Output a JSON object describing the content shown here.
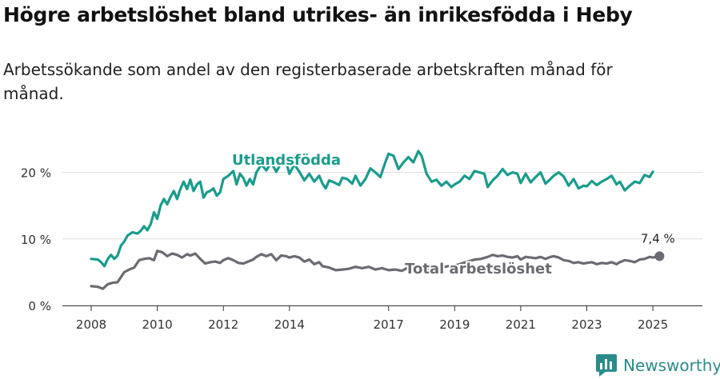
{
  "title": "Högre arbetslöshet bland utrikes- än inrikesfödda i Heby",
  "subtitle": "Arbetssökande som andel av den registerbaserade arbetskraften månad för månad.",
  "brand": {
    "name": "Newsworthy",
    "color": "#2a8c8a",
    "icon": "bar-chart-logo-icon"
  },
  "chart_data": {
    "type": "line",
    "xlabel": "",
    "ylabel": "",
    "ylim": [
      0,
      25
    ],
    "x_ticks": [
      "2008",
      "2010",
      "2012",
      "2014",
      "2017",
      "2019",
      "2021",
      "2023",
      "2025"
    ],
    "y_ticks": [
      "0 %",
      "10 %",
      "20 %"
    ],
    "grid": "horizontal",
    "end_label": "7,4 %",
    "series": [
      {
        "name": "Utlandsfödda",
        "color": "#1a9c8c",
        "points": [
          [
            2008.0,
            7.0
          ],
          [
            2008.2,
            6.9
          ],
          [
            2008.3,
            6.5
          ],
          [
            2008.4,
            5.9
          ],
          [
            2008.5,
            7.0
          ],
          [
            2008.6,
            7.6
          ],
          [
            2008.7,
            7.0
          ],
          [
            2008.8,
            7.5
          ],
          [
            2008.9,
            9.0
          ],
          [
            2009.0,
            9.6
          ],
          [
            2009.1,
            10.5
          ],
          [
            2009.25,
            11.0
          ],
          [
            2009.4,
            10.8
          ],
          [
            2009.5,
            11.2
          ],
          [
            2009.6,
            11.9
          ],
          [
            2009.7,
            11.3
          ],
          [
            2009.8,
            12.2
          ],
          [
            2009.9,
            14.0
          ],
          [
            2010.0,
            13.0
          ],
          [
            2010.1,
            15.0
          ],
          [
            2010.2,
            16.0
          ],
          [
            2010.3,
            15.2
          ],
          [
            2010.4,
            16.3
          ],
          [
            2010.5,
            17.2
          ],
          [
            2010.6,
            16.0
          ],
          [
            2010.7,
            17.5
          ],
          [
            2010.8,
            18.6
          ],
          [
            2010.9,
            17.5
          ],
          [
            2011.0,
            18.9
          ],
          [
            2011.1,
            17.2
          ],
          [
            2011.2,
            18.2
          ],
          [
            2011.3,
            18.6
          ],
          [
            2011.4,
            16.2
          ],
          [
            2011.5,
            17.0
          ],
          [
            2011.6,
            17.2
          ],
          [
            2011.7,
            17.6
          ],
          [
            2011.8,
            16.5
          ],
          [
            2011.9,
            17.0
          ],
          [
            2012.0,
            19.0
          ],
          [
            2012.15,
            19.5
          ],
          [
            2012.3,
            20.2
          ],
          [
            2012.4,
            18.2
          ],
          [
            2012.5,
            19.8
          ],
          [
            2012.6,
            19.2
          ],
          [
            2012.7,
            18.0
          ],
          [
            2012.8,
            19.0
          ],
          [
            2012.9,
            18.2
          ],
          [
            2013.0,
            20.0
          ],
          [
            2013.15,
            21.2
          ],
          [
            2013.3,
            20.3
          ],
          [
            2013.45,
            21.5
          ],
          [
            2013.6,
            20.1
          ],
          [
            2013.75,
            21.4
          ],
          [
            2013.9,
            21.5
          ],
          [
            2014.0,
            19.8
          ],
          [
            2014.15,
            21.2
          ],
          [
            2014.3,
            20.1
          ],
          [
            2014.45,
            18.8
          ],
          [
            2014.6,
            19.8
          ],
          [
            2014.75,
            18.6
          ],
          [
            2014.9,
            19.5
          ],
          [
            2015.0,
            18.3
          ],
          [
            2015.1,
            17.6
          ],
          [
            2015.2,
            18.8
          ],
          [
            2015.35,
            18.5
          ],
          [
            2015.5,
            18.1
          ],
          [
            2015.6,
            19.2
          ],
          [
            2015.75,
            19.0
          ],
          [
            2015.9,
            18.3
          ],
          [
            2016.0,
            19.5
          ],
          [
            2016.15,
            18.0
          ],
          [
            2016.3,
            19.0
          ],
          [
            2016.45,
            20.6
          ],
          [
            2016.6,
            20.0
          ],
          [
            2016.75,
            19.3
          ],
          [
            2016.9,
            21.5
          ],
          [
            2017.0,
            22.8
          ],
          [
            2017.15,
            22.5
          ],
          [
            2017.3,
            20.5
          ],
          [
            2017.45,
            21.5
          ],
          [
            2017.6,
            22.3
          ],
          [
            2017.75,
            21.5
          ],
          [
            2017.9,
            23.2
          ],
          [
            2018.0,
            22.5
          ],
          [
            2018.15,
            19.8
          ],
          [
            2018.3,
            18.6
          ],
          [
            2018.45,
            18.9
          ],
          [
            2018.6,
            18.0
          ],
          [
            2018.75,
            18.6
          ],
          [
            2018.9,
            17.8
          ],
          [
            2019.0,
            18.2
          ],
          [
            2019.15,
            18.6
          ],
          [
            2019.3,
            19.5
          ],
          [
            2019.45,
            19.0
          ],
          [
            2019.6,
            20.2
          ],
          [
            2019.75,
            20.0
          ],
          [
            2019.9,
            19.8
          ],
          [
            2020.0,
            17.8
          ],
          [
            2020.15,
            18.8
          ],
          [
            2020.3,
            19.5
          ],
          [
            2020.45,
            20.5
          ],
          [
            2020.6,
            19.6
          ],
          [
            2020.75,
            20.0
          ],
          [
            2020.9,
            19.8
          ],
          [
            2021.0,
            18.4
          ],
          [
            2021.15,
            19.8
          ],
          [
            2021.3,
            18.5
          ],
          [
            2021.45,
            19.3
          ],
          [
            2021.6,
            20.0
          ],
          [
            2021.75,
            18.3
          ],
          [
            2021.9,
            19.0
          ],
          [
            2022.0,
            19.5
          ],
          [
            2022.15,
            20.0
          ],
          [
            2022.3,
            19.4
          ],
          [
            2022.45,
            18.0
          ],
          [
            2022.6,
            19.0
          ],
          [
            2022.75,
            17.6
          ],
          [
            2022.9,
            18.0
          ],
          [
            2023.0,
            17.9
          ],
          [
            2023.15,
            18.7
          ],
          [
            2023.3,
            18.1
          ],
          [
            2023.45,
            18.6
          ],
          [
            2023.6,
            19.0
          ],
          [
            2023.75,
            19.5
          ],
          [
            2023.9,
            18.2
          ],
          [
            2024.0,
            18.6
          ],
          [
            2024.15,
            17.3
          ],
          [
            2024.3,
            18.0
          ],
          [
            2024.45,
            18.6
          ],
          [
            2024.6,
            18.4
          ],
          [
            2024.75,
            19.6
          ],
          [
            2024.9,
            19.3
          ],
          [
            2025.0,
            20.1
          ]
        ]
      },
      {
        "name": "Total arbetslöshet",
        "color": "#6b6b72",
        "points": [
          [
            2008.0,
            2.9
          ],
          [
            2008.2,
            2.8
          ],
          [
            2008.35,
            2.5
          ],
          [
            2008.5,
            3.2
          ],
          [
            2008.65,
            3.4
          ],
          [
            2008.8,
            3.5
          ],
          [
            2009.0,
            5.0
          ],
          [
            2009.15,
            5.4
          ],
          [
            2009.3,
            5.7
          ],
          [
            2009.45,
            6.8
          ],
          [
            2009.6,
            7.0
          ],
          [
            2009.75,
            7.1
          ],
          [
            2009.9,
            6.8
          ],
          [
            2010.0,
            8.2
          ],
          [
            2010.15,
            8.0
          ],
          [
            2010.3,
            7.4
          ],
          [
            2010.45,
            7.8
          ],
          [
            2010.6,
            7.6
          ],
          [
            2010.75,
            7.2
          ],
          [
            2010.9,
            7.7
          ],
          [
            2011.0,
            7.5
          ],
          [
            2011.15,
            7.8
          ],
          [
            2011.3,
            7.0
          ],
          [
            2011.45,
            6.3
          ],
          [
            2011.6,
            6.5
          ],
          [
            2011.75,
            6.6
          ],
          [
            2011.9,
            6.4
          ],
          [
            2012.0,
            6.8
          ],
          [
            2012.15,
            7.1
          ],
          [
            2012.3,
            6.8
          ],
          [
            2012.45,
            6.4
          ],
          [
            2012.6,
            6.3
          ],
          [
            2012.75,
            6.6
          ],
          [
            2012.9,
            6.9
          ],
          [
            2013.0,
            7.3
          ],
          [
            2013.15,
            7.7
          ],
          [
            2013.3,
            7.4
          ],
          [
            2013.45,
            7.7
          ],
          [
            2013.6,
            6.8
          ],
          [
            2013.75,
            7.5
          ],
          [
            2013.9,
            7.4
          ],
          [
            2014.0,
            7.2
          ],
          [
            2014.15,
            7.4
          ],
          [
            2014.3,
            7.2
          ],
          [
            2014.45,
            6.6
          ],
          [
            2014.6,
            6.9
          ],
          [
            2014.75,
            6.2
          ],
          [
            2014.9,
            6.5
          ],
          [
            2015.0,
            5.9
          ],
          [
            2015.2,
            5.7
          ],
          [
            2015.4,
            5.3
          ],
          [
            2015.6,
            5.4
          ],
          [
            2015.8,
            5.5
          ],
          [
            2016.0,
            5.8
          ],
          [
            2016.2,
            5.6
          ],
          [
            2016.4,
            5.8
          ],
          [
            2016.6,
            5.4
          ],
          [
            2016.8,
            5.6
          ],
          [
            2017.0,
            5.3
          ],
          [
            2017.2,
            5.4
          ],
          [
            2017.4,
            5.2
          ],
          [
            2017.6,
            5.7
          ],
          [
            2017.8,
            5.8
          ],
          [
            2018.0,
            5.5
          ],
          [
            2018.2,
            5.4
          ],
          [
            2018.4,
            5.6
          ],
          [
            2018.6,
            5.7
          ],
          [
            2018.8,
            5.9
          ],
          [
            2019.0,
            6.0
          ],
          [
            2019.2,
            6.3
          ],
          [
            2019.4,
            6.6
          ],
          [
            2019.6,
            6.9
          ],
          [
            2019.8,
            7.0
          ],
          [
            2020.0,
            7.3
          ],
          [
            2020.15,
            7.6
          ],
          [
            2020.3,
            7.4
          ],
          [
            2020.45,
            7.5
          ],
          [
            2020.6,
            7.3
          ],
          [
            2020.75,
            7.2
          ],
          [
            2020.9,
            7.4
          ],
          [
            2021.0,
            6.9
          ],
          [
            2021.15,
            7.3
          ],
          [
            2021.3,
            7.2
          ],
          [
            2021.45,
            7.1
          ],
          [
            2021.6,
            7.3
          ],
          [
            2021.75,
            7.0
          ],
          [
            2021.9,
            7.3
          ],
          [
            2022.0,
            7.4
          ],
          [
            2022.15,
            7.2
          ],
          [
            2022.3,
            6.8
          ],
          [
            2022.45,
            6.7
          ],
          [
            2022.6,
            6.4
          ],
          [
            2022.75,
            6.5
          ],
          [
            2022.9,
            6.3
          ],
          [
            2023.0,
            6.4
          ],
          [
            2023.15,
            6.5
          ],
          [
            2023.3,
            6.2
          ],
          [
            2023.45,
            6.4
          ],
          [
            2023.6,
            6.3
          ],
          [
            2023.75,
            6.5
          ],
          [
            2023.9,
            6.2
          ],
          [
            2024.0,
            6.5
          ],
          [
            2024.15,
            6.8
          ],
          [
            2024.3,
            6.7
          ],
          [
            2024.45,
            6.5
          ],
          [
            2024.6,
            6.9
          ],
          [
            2024.75,
            7.0
          ],
          [
            2024.9,
            7.3
          ],
          [
            2025.0,
            7.2
          ],
          [
            2025.2,
            7.4
          ]
        ]
      }
    ]
  }
}
